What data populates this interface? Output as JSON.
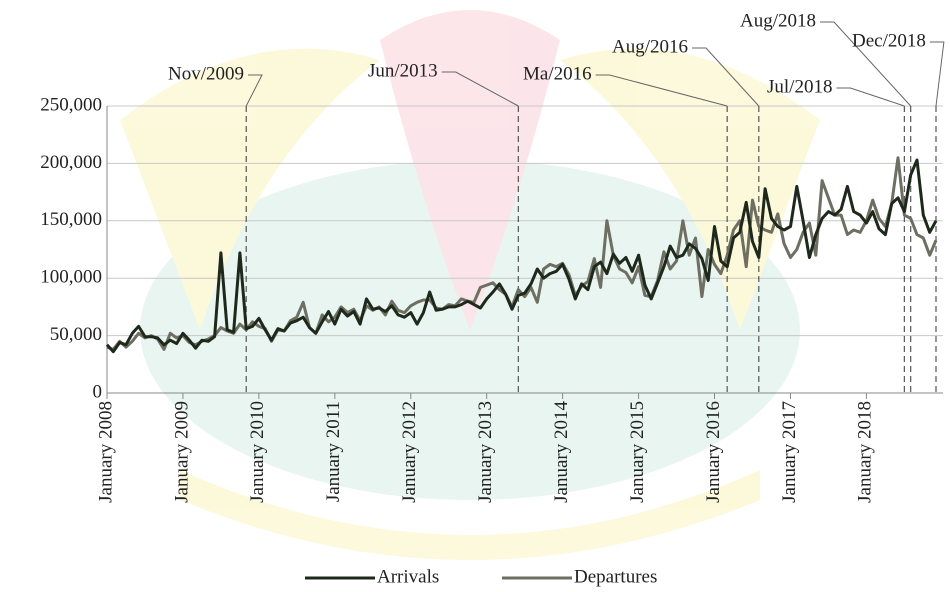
{
  "chart_data": {
    "type": "line",
    "x": [
      "2008-01",
      "2008-02",
      "2008-03",
      "2008-04",
      "2008-05",
      "2008-06",
      "2008-07",
      "2008-08",
      "2008-09",
      "2008-10",
      "2008-11",
      "2008-12",
      "2009-01",
      "2009-02",
      "2009-03",
      "2009-04",
      "2009-05",
      "2009-06",
      "2009-07",
      "2009-08",
      "2009-09",
      "2009-10",
      "2009-11",
      "2009-12",
      "2010-01",
      "2010-02",
      "2010-03",
      "2010-04",
      "2010-05",
      "2010-06",
      "2010-07",
      "2010-08",
      "2010-09",
      "2010-10",
      "2010-11",
      "2010-12",
      "2011-01",
      "2011-02",
      "2011-03",
      "2011-04",
      "2011-05",
      "2011-06",
      "2011-07",
      "2011-08",
      "2011-09",
      "2011-10",
      "2011-11",
      "2011-12",
      "2012-01",
      "2012-02",
      "2012-03",
      "2012-04",
      "2012-05",
      "2012-06",
      "2012-07",
      "2012-08",
      "2012-09",
      "2012-10",
      "2012-11",
      "2012-12",
      "2013-01",
      "2013-02",
      "2013-03",
      "2013-04",
      "2013-05",
      "2013-06",
      "2013-07",
      "2013-08",
      "2013-09",
      "2013-10",
      "2013-11",
      "2013-12",
      "2014-01",
      "2014-02",
      "2014-03",
      "2014-04",
      "2014-05",
      "2014-06",
      "2014-07",
      "2014-08",
      "2014-09",
      "2014-10",
      "2014-11",
      "2014-12",
      "2015-01",
      "2015-02",
      "2015-03",
      "2015-04",
      "2015-05",
      "2015-06",
      "2015-07",
      "2015-08",
      "2015-09",
      "2015-10",
      "2015-11",
      "2015-12",
      "2016-01",
      "2016-02",
      "2016-03",
      "2016-04",
      "2016-05",
      "2016-06",
      "2016-07",
      "2016-08",
      "2016-09",
      "2016-10",
      "2016-11",
      "2016-12",
      "2017-01",
      "2017-02",
      "2017-03",
      "2017-04",
      "2017-05",
      "2017-06",
      "2017-07",
      "2017-08",
      "2017-09",
      "2017-10",
      "2017-11",
      "2017-12",
      "2018-01",
      "2018-02",
      "2018-03",
      "2018-04",
      "2018-05",
      "2018-06",
      "2018-07",
      "2018-08",
      "2018-09",
      "2018-10",
      "2018-11",
      "2018-12"
    ],
    "series": [
      {
        "name": "Arrivals",
        "color": "#1e291c",
        "values": [
          42000,
          36000,
          44000,
          42000,
          52000,
          58000,
          49000,
          49000,
          48000,
          42000,
          46000,
          43000,
          52000,
          46000,
          39000,
          46000,
          45000,
          49000,
          122000,
          55000,
          53000,
          122000,
          56000,
          58000,
          65000,
          55000,
          46000,
          56000,
          54000,
          61000,
          63000,
          66000,
          57000,
          52000,
          62000,
          71000,
          60000,
          73000,
          67000,
          71000,
          60000,
          82000,
          73000,
          74000,
          71000,
          76000,
          68000,
          66000,
          70000,
          60000,
          70000,
          88000,
          72000,
          73000,
          75000,
          75000,
          77000,
          80000,
          77000,
          74000,
          82000,
          88000,
          95000,
          86000,
          73000,
          85000,
          87000,
          95000,
          108000,
          100000,
          104000,
          106000,
          112000,
          99000,
          82000,
          95000,
          90000,
          110000,
          114000,
          104000,
          121000,
          113000,
          118000,
          106000,
          120000,
          94000,
          82000,
          96000,
          110000,
          128000,
          118000,
          120000,
          130000,
          126000,
          117000,
          98000,
          145000,
          115000,
          110000,
          135000,
          140000,
          166000,
          132000,
          118000,
          178000,
          152000,
          145000,
          142000,
          145000,
          180000,
          150000,
          118000,
          138000,
          152000,
          158000,
          155000,
          160000,
          180000,
          158000,
          155000,
          148000,
          158000,
          143000,
          138000,
          165000,
          170000,
          158000,
          190000,
          203000,
          155000,
          140000,
          150000
        ]
      },
      {
        "name": "Departures",
        "color": "#6e6e62",
        "values": [
          40000,
          38000,
          45000,
          40000,
          45000,
          52000,
          48000,
          50000,
          47000,
          38000,
          52000,
          48000,
          50000,
          44000,
          42000,
          45000,
          47000,
          50000,
          57000,
          54000,
          52000,
          60000,
          55000,
          62000,
          58000,
          56000,
          45000,
          55000,
          54000,
          63000,
          66000,
          79000,
          57000,
          52000,
          68000,
          62000,
          66000,
          75000,
          70000,
          73000,
          63000,
          76000,
          72000,
          75000,
          68000,
          80000,
          72000,
          70000,
          76000,
          79000,
          81000,
          81000,
          74000,
          73000,
          77000,
          76000,
          82000,
          80000,
          79000,
          92000,
          94000,
          96000,
          90000,
          86000,
          75000,
          90000,
          84000,
          92000,
          79000,
          108000,
          112000,
          110000,
          113000,
          103000,
          85000,
          93000,
          97000,
          117000,
          92000,
          150000,
          120000,
          108000,
          105000,
          96000,
          110000,
          85000,
          84000,
          98000,
          123000,
          108000,
          115000,
          150000,
          120000,
          135000,
          84000,
          125000,
          112000,
          104000,
          120000,
          142000,
          150000,
          110000,
          168000,
          145000,
          142000,
          140000,
          156000,
          130000,
          118000,
          125000,
          140000,
          148000,
          120000,
          185000,
          170000,
          155000,
          155000,
          138000,
          142000,
          140000,
          150000,
          168000,
          152000,
          145000,
          165000,
          205000,
          155000,
          152000,
          138000,
          135000,
          120000,
          133000
        ]
      }
    ],
    "xlim": [
      "2008-01",
      "2018-12"
    ],
    "xticks": [
      {
        "value": "2008-01",
        "label": "January 2008"
      },
      {
        "value": "2009-01",
        "label": "January 2009"
      },
      {
        "value": "2010-01",
        "label": "January 2010"
      },
      {
        "value": "2011-01",
        "label": "January 2011"
      },
      {
        "value": "2012-01",
        "label": "January 2012"
      },
      {
        "value": "2013-01",
        "label": "January 2013"
      },
      {
        "value": "2014-01",
        "label": "January 2014"
      },
      {
        "value": "2015-01",
        "label": "January 2015"
      },
      {
        "value": "2016-01",
        "label": "January 2016"
      },
      {
        "value": "2017-01",
        "label": "January 2017"
      },
      {
        "value": "2018-01",
        "label": "January 2018"
      }
    ],
    "ylim": [
      0,
      250000
    ],
    "yticks": [
      0,
      {
        "value": 50000,
        "label": "50,000"
      },
      {
        "value": 100000,
        "label": "100,000"
      },
      {
        "value": 150000,
        "label": "150,000"
      },
      {
        "value": 200000,
        "label": "200,000"
      },
      {
        "value": 250000,
        "label": "250,000"
      }
    ],
    "grid": true,
    "annotations": [
      {
        "text": "Nov/2009",
        "x": "2009-11"
      },
      {
        "text": "Jun/2013",
        "x": "2013-06"
      },
      {
        "text": "Ma/2016",
        "x": "2016-03"
      },
      {
        "text": "Aug/2016",
        "x": "2016-08"
      },
      {
        "text": "Jul/2018",
        "x": "2018-07"
      },
      {
        "text": "Aug/2018",
        "x": "2018-08"
      },
      {
        "text": "Dec/2018",
        "x": "2018-12"
      }
    ],
    "legend": "bottom"
  }
}
